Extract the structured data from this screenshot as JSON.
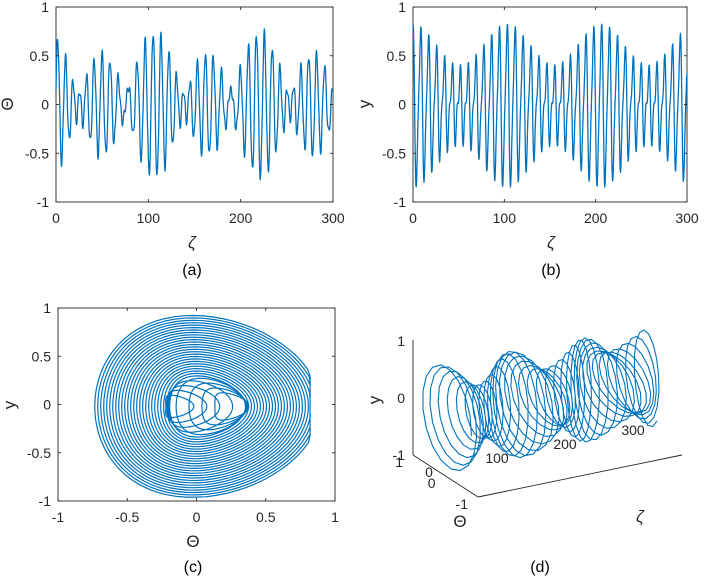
{
  "chart_data": [
    {
      "id": "a",
      "type": "line",
      "panel_label": "(a)",
      "xlabel": "ζ",
      "ylabel": "Θ",
      "xlim": [
        0,
        300
      ],
      "ylim": [
        -1,
        1
      ],
      "xticks": [
        0,
        100,
        200,
        300
      ],
      "yticks": [
        -1,
        -0.5,
        0,
        0.5,
        1
      ],
      "xtick_labels": [
        "0",
        "100",
        "200",
        "300"
      ],
      "ytick_labels": [
        "-1",
        "-0.5",
        "0",
        "0.5",
        "1"
      ],
      "color": "#0072BD",
      "series_description": "oscillating signal, ~35 peaks over 0–300, amplitude about ±0.8"
    },
    {
      "id": "b",
      "type": "line",
      "panel_label": "(b)",
      "xlabel": "ζ",
      "ylabel": "y",
      "xlim": [
        0,
        300
      ],
      "ylim": [
        -1,
        1
      ],
      "xticks": [
        0,
        100,
        200,
        300
      ],
      "yticks": [
        -1,
        -0.5,
        0,
        0.5,
        1
      ],
      "xtick_labels": [
        "0",
        "100",
        "200",
        "300"
      ],
      "ytick_labels": [
        "-1",
        "-0.5",
        "0",
        "0.5",
        "1"
      ],
      "color": "#0072BD",
      "series_description": "oscillating signal, ~35 peaks over 0–300, amplitude about ±0.95"
    },
    {
      "id": "c",
      "type": "line",
      "panel_label": "(c)",
      "xlabel": "Θ",
      "ylabel": "y",
      "xlim": [
        -1,
        1
      ],
      "ylim": [
        -1,
        1
      ],
      "xticks": [
        -1,
        -0.5,
        0,
        0.5,
        1
      ],
      "yticks": [
        -1,
        -0.5,
        0,
        0.5,
        1
      ],
      "xtick_labels": [
        "-1",
        "-0.5",
        "0",
        "0.5",
        "1"
      ],
      "ytick_labels": [
        "-1",
        "-0.5",
        "0",
        "0.5",
        "1"
      ],
      "color": "#0072BD",
      "series_description": "phase portrait, dense nested loops spanning Θ ≈ −0.75…0.8, y ≈ −0.95…0.95, two small inner loops near Θ ≈ ±0.2"
    },
    {
      "id": "d",
      "type": "line",
      "panel_label": "(d)",
      "xlabel": "ζ",
      "ylabel": "y",
      "zlabel": "Θ",
      "xticks": [
        0,
        100,
        200,
        300
      ],
      "xtick_labels": [
        "0",
        "100",
        "200",
        "300"
      ],
      "yticks": [
        -1,
        0,
        1
      ],
      "ytick_labels": [
        "-1",
        "0",
        "1"
      ],
      "zticks": [
        -1,
        0,
        1
      ],
      "ztick_labels": [
        "-1",
        "0",
        "1"
      ],
      "color": "#0072BD",
      "series_description": "3D trajectory (ζ, Θ, y): looping helix drawn in perspective along the ζ axis"
    }
  ]
}
